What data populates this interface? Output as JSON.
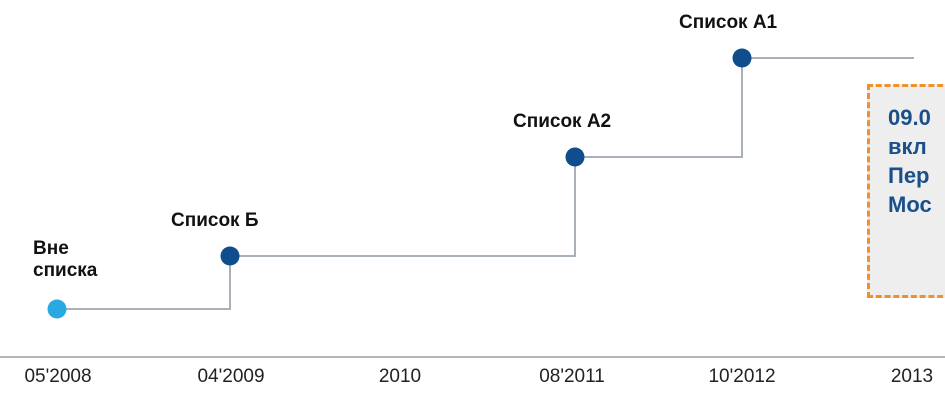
{
  "colors": {
    "line": "#a9b0b8",
    "axis": "#b4b4b4",
    "point_primary": "#0f4d8c",
    "point_start": "#29a9e1",
    "note_border": "#f0902a",
    "note_background": "#eeeeee",
    "note_text": "#1b4f8a"
  },
  "stages": [
    {
      "id": "out",
      "label": "Вне\nсписка",
      "date": "05'2008"
    },
    {
      "id": "b",
      "label": "Список Б",
      "date": "04'2009"
    },
    {
      "id": "a2",
      "label": "Список А2",
      "date": "08'2011"
    },
    {
      "id": "a1",
      "label": "Список А1",
      "date": "10'2012"
    }
  ],
  "axis_ticks": [
    "05'2008",
    "04'2009",
    "2010",
    "08'2011",
    "10'2012",
    "2013"
  ],
  "note": {
    "text": "09.0\nвкл\nПер\nМос"
  }
}
